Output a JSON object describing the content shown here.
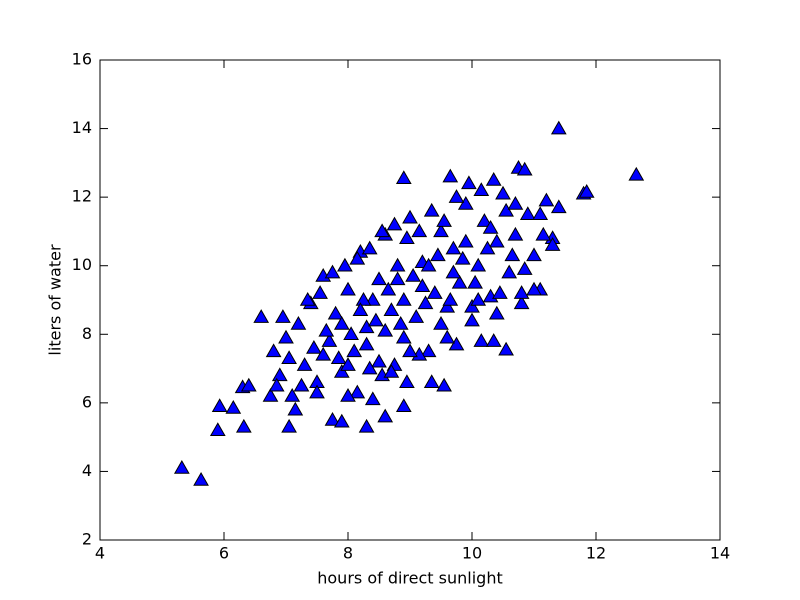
{
  "chart_data": {
    "type": "scatter",
    "xlabel": "hours of direct sunlight",
    "ylabel": "liters of water",
    "xlim": [
      4,
      14
    ],
    "xticks": [
      4,
      6,
      8,
      10,
      12,
      14
    ],
    "ylim": [
      2,
      16
    ],
    "yticks": [
      2,
      4,
      6,
      8,
      10,
      12,
      14,
      16
    ],
    "marker": "triangle",
    "color": "#0000ff",
    "edgecolor": "#000000",
    "x": [
      5.32,
      5.63,
      5.9,
      5.93,
      6.15,
      6.3,
      6.32,
      6.4,
      6.6,
      7.05,
      11.4,
      12.65,
      11.8,
      11.85,
      8.9,
      9.65,
      10.75,
      10.85,
      10.55,
      9.55,
      8.3,
      8.6,
      7.75,
      7.9,
      8.9,
      6.8,
      6.9,
      7.0,
      7.1,
      7.2,
      7.3,
      7.4,
      7.5,
      7.6,
      7.7,
      7.8,
      7.9,
      8.0,
      8.1,
      8.2,
      8.3,
      8.4,
      8.5,
      8.6,
      8.7,
      8.8,
      8.9,
      9.0,
      9.1,
      9.2,
      9.3,
      9.4,
      9.5,
      9.6,
      9.7,
      9.8,
      9.9,
      10.0,
      10.1,
      10.2,
      10.3,
      10.4,
      10.5,
      10.6,
      10.7,
      10.8,
      10.9,
      11.0,
      11.1,
      11.2,
      11.3,
      11.4,
      7.05,
      7.25,
      7.45,
      7.65,
      7.85,
      8.05,
      8.25,
      8.45,
      8.65,
      8.85,
      9.05,
      9.25,
      9.45,
      9.65,
      9.85,
      10.05,
      10.25,
      10.45,
      10.65,
      10.85,
      8.15,
      8.35,
      8.55,
      8.75,
      8.95,
      9.15,
      9.35,
      9.75,
      10.15,
      10.35,
      7.35,
      7.55,
      7.75,
      7.95,
      8.15,
      8.35,
      8.55,
      8.75,
      8.95,
      9.15,
      9.35,
      9.55,
      9.75,
      9.95,
      10.15,
      10.35,
      10.55,
      6.95,
      6.75,
      6.85,
      7.15,
      7.5,
      8.0,
      8.4,
      8.7,
      9.0,
      9.6,
      10.0,
      10.4,
      10.8,
      11.0,
      11.15,
      11.3,
      11.1,
      9.5,
      9.2,
      8.8,
      8.5,
      8.2,
      7.9,
      7.6,
      9.9,
      10.3,
      10.7,
      10.1,
      9.7,
      9.3,
      8.9,
      8.6,
      8.3,
      8.0
    ],
    "values": [
      4.1,
      3.75,
      5.2,
      5.9,
      5.85,
      6.45,
      5.3,
      6.5,
      8.5,
      5.3,
      14.0,
      12.65,
      12.1,
      12.15,
      12.55,
      12.6,
      12.85,
      12.8,
      7.55,
      6.5,
      5.3,
      5.6,
      5.5,
      5.45,
      5.9,
      7.5,
      6.8,
      7.9,
      6.2,
      8.3,
      7.1,
      8.9,
      6.6,
      9.7,
      7.8,
      8.6,
      6.9,
      9.3,
      7.5,
      10.4,
      8.2,
      9.0,
      7.2,
      10.9,
      8.7,
      9.6,
      7.9,
      11.4,
      8.5,
      10.1,
      7.5,
      9.2,
      11.0,
      8.8,
      10.5,
      9.5,
      11.8,
      8.4,
      10.0,
      11.3,
      9.1,
      10.7,
      12.1,
      9.8,
      10.9,
      8.9,
      11.5,
      10.3,
      9.3,
      11.9,
      10.8,
      11.7,
      7.3,
      6.5,
      7.6,
      8.1,
      7.3,
      8.0,
      9.0,
      8.4,
      9.3,
      8.3,
      9.7,
      8.9,
      10.3,
      9.0,
      10.2,
      9.5,
      10.5,
      9.2,
      10.3,
      9.9,
      6.3,
      7.0,
      6.8,
      7.1,
      6.6,
      7.4,
      6.6,
      7.7,
      7.8,
      7.8,
      9.0,
      9.2,
      9.8,
      10.0,
      10.2,
      10.5,
      11.0,
      11.2,
      10.8,
      11.0,
      11.6,
      11.3,
      12.0,
      12.4,
      12.2,
      12.5,
      11.6,
      8.5,
      6.2,
      6.5,
      5.8,
      6.3,
      6.2,
      6.1,
      6.9,
      7.5,
      7.9,
      8.8,
      8.6,
      9.2,
      9.3,
      10.9,
      10.6,
      11.5,
      8.3,
      9.4,
      10.0,
      9.6,
      8.7,
      8.3,
      7.4,
      10.7,
      11.1,
      11.8,
      9.0,
      9.8,
      10.0,
      9.0,
      8.1,
      7.7,
      7.1
    ]
  }
}
